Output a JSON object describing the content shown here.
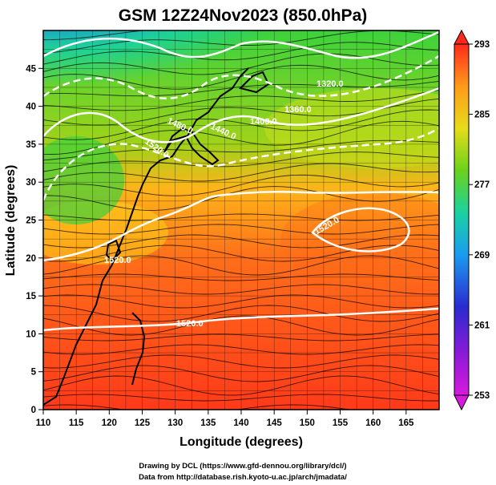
{
  "title": "GSM 12Z24Nov2023 (850.0hPa)",
  "xaxis": {
    "label": "Longitude (degrees)",
    "range": [
      110,
      170
    ],
    "ticks": [
      "110",
      "115",
      "120",
      "125",
      "130",
      "135",
      "140",
      "145",
      "150",
      "155",
      "160",
      "165"
    ],
    "tick_values": [
      110,
      115,
      120,
      125,
      130,
      135,
      140,
      145,
      150,
      155,
      160,
      165
    ]
  },
  "yaxis": {
    "label": "Latitude  (degrees)",
    "range": [
      0,
      50
    ],
    "ticks": [
      "0",
      "5",
      "10",
      "15",
      "20",
      "25",
      "30",
      "35",
      "40",
      "45"
    ],
    "tick_values": [
      0,
      5,
      10,
      15,
      20,
      25,
      30,
      35,
      40,
      45
    ]
  },
  "colorbar": {
    "ticks": [
      "253",
      "261",
      "269",
      "277",
      "285",
      "293"
    ],
    "tick_values": [
      253,
      261,
      269,
      277,
      285,
      293
    ],
    "range": [
      253,
      293
    ],
    "colors": [
      "#d81adc",
      "#3a1ac8",
      "#1a8cf0",
      "#1ad2a0",
      "#5ad21a",
      "#e6dc1a",
      "#ff9a1a",
      "#ff2a1a"
    ]
  },
  "contour_labels": [
    "1320.0",
    "1360.0",
    "1400.0",
    "1440.0",
    "1480.0",
    "1520.0",
    "1520.0",
    "1520.0",
    "1520.0"
  ],
  "credits": [
    "Drawing by DCL (https://www.gfd-dennou.org/library/dcl/)",
    "Data from http://database.rish.kyoto-u.ac.jp/arch/jmadata/"
  ]
}
